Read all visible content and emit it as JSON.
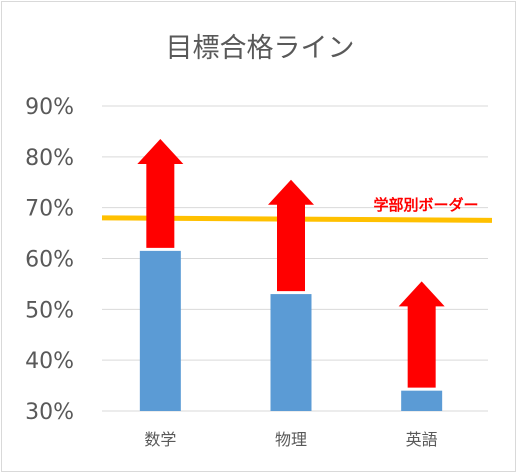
{
  "chart_data": {
    "type": "bar",
    "title": "目標合格ライン",
    "categories": [
      "数学",
      "物理",
      "英語"
    ],
    "values": [
      61.5,
      53,
      34
    ],
    "targets": [
      83.5,
      75.5,
      55.5
    ],
    "ylim": [
      30,
      90
    ],
    "yticks": [
      "30%",
      "40%",
      "50%",
      "60%",
      "70%",
      "80%",
      "90%"
    ],
    "ytick_values": [
      30,
      40,
      50,
      60,
      70,
      80,
      90
    ],
    "grid": true,
    "reference_line": {
      "label": "学部別ボーダー",
      "value_start": 68,
      "value_end": 67.5,
      "color": "#ffc000"
    },
    "colors": {
      "bar": "#5b9bd5",
      "arrow": "#ff0000",
      "label": "#ff0000",
      "grid": "#d9d9d9",
      "text": "#595959"
    }
  }
}
